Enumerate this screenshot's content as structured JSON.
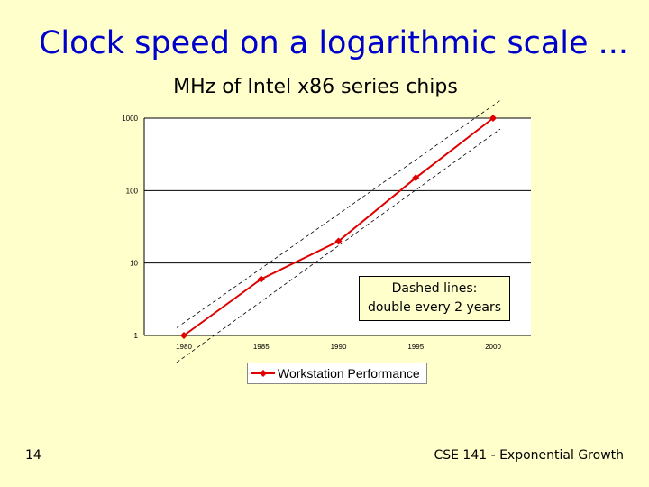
{
  "slide": {
    "title": "Clock speed on a logarithmic scale ...",
    "number": "14",
    "footer": "CSE 141 - Exponential Growth"
  },
  "callout": {
    "line1": "Dashed lines:",
    "line2": "double every 2 years"
  },
  "colors": {
    "background": "#ffffcc",
    "title": "#0000cc",
    "series": "#e00000",
    "plot_area": "#ffffff"
  },
  "chart_data": {
    "type": "line",
    "title": "MHz of Intel x86 series chips",
    "xlabel": "",
    "ylabel": "",
    "y_scale": "log",
    "ylim": [
      1,
      1000
    ],
    "y_ticks": [
      "1",
      "10",
      "100",
      "1000"
    ],
    "x": [
      1980,
      1985,
      1990,
      1995,
      2000
    ],
    "x_tick_labels": [
      "1980",
      "1985",
      "1990",
      "1995",
      "2000"
    ],
    "series": [
      {
        "name": "Workstation Performance",
        "values": [
          1,
          6,
          20,
          150,
          1000
        ]
      }
    ],
    "reference_lines": [
      {
        "style": "dashed",
        "x": [
          1980,
          2000
        ],
        "y": [
          1.5,
          1500
        ]
      },
      {
        "style": "dashed",
        "x": [
          1980,
          2000
        ],
        "y": [
          0.5,
          600
        ]
      }
    ],
    "grid": "horizontal",
    "legend_position": "bottom"
  }
}
